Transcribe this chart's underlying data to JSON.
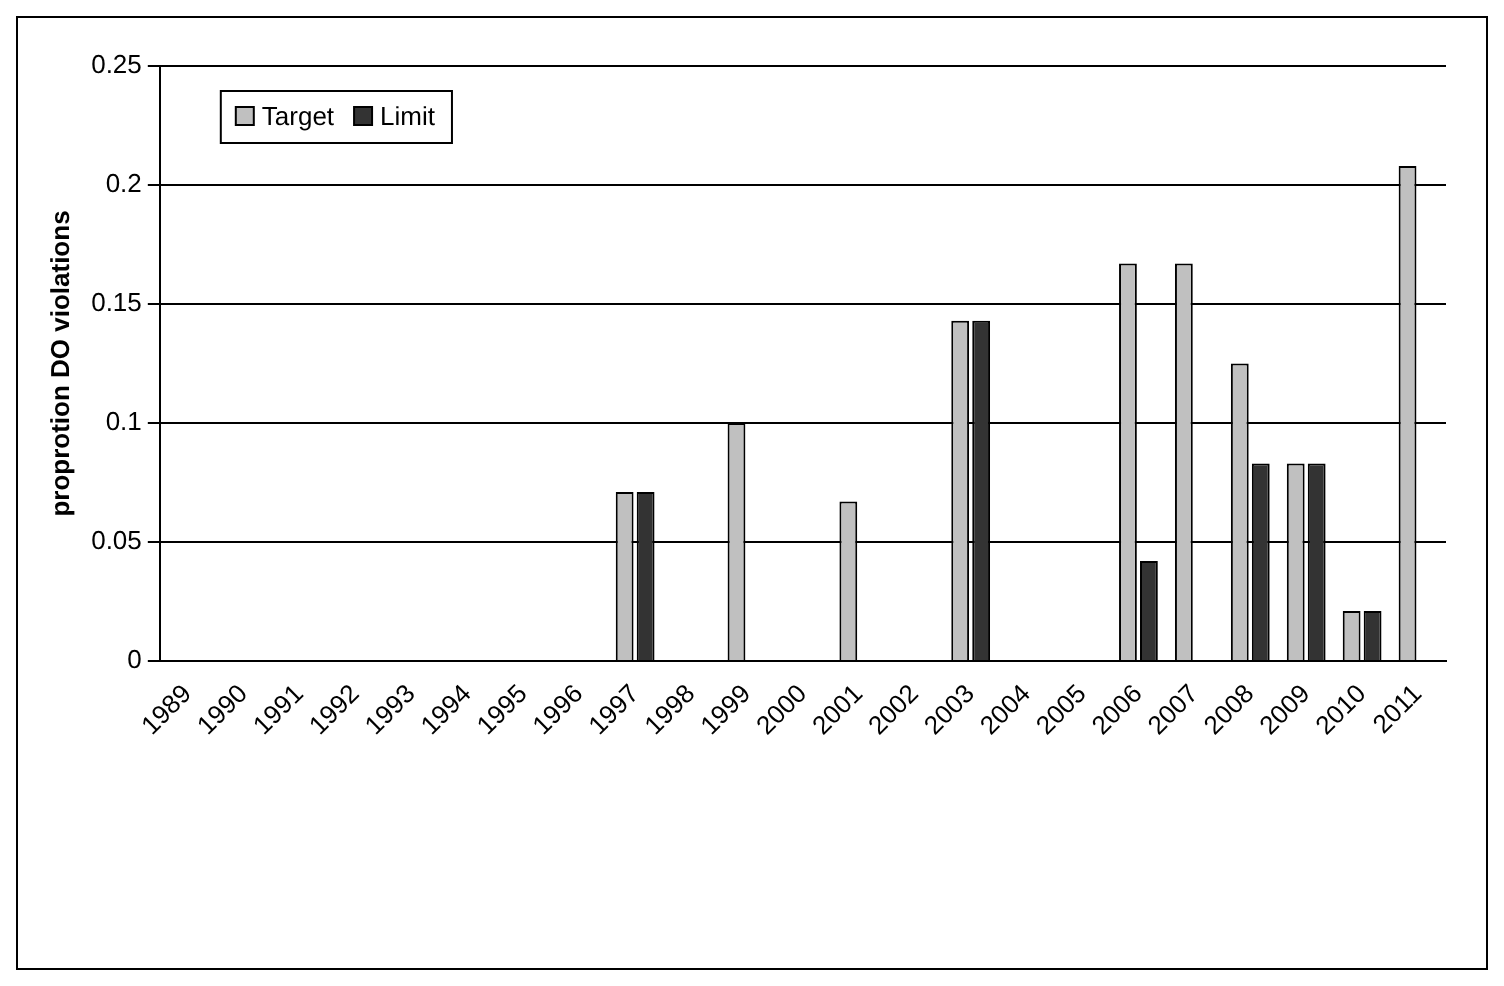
{
  "chart_data": {
    "type": "bar",
    "ylabel": "proprotion DO violations",
    "categories": [
      "1989",
      "1990",
      "1991",
      "1992",
      "1993",
      "1994",
      "1995",
      "1996",
      "1997",
      "1998",
      "1999",
      "2000",
      "2001",
      "2002",
      "2003",
      "2004",
      "2005",
      "2006",
      "2007",
      "2008",
      "2009",
      "2010",
      "2011"
    ],
    "series": [
      {
        "name": "Target",
        "color": "#c0c0c0",
        "values": [
          0,
          0,
          0,
          0,
          0,
          0,
          0,
          0,
          0.071,
          0,
          0.1,
          0,
          0.067,
          0,
          0.143,
          0,
          0,
          0.167,
          0.167,
          0.125,
          0.083,
          0.021,
          0.208
        ]
      },
      {
        "name": "Limit",
        "color": "#333333",
        "values": [
          0,
          0,
          0,
          0,
          0,
          0,
          0,
          0,
          0.071,
          0,
          0,
          0,
          0,
          0,
          0.143,
          0,
          0,
          0.042,
          0,
          0.083,
          0.083,
          0.021,
          0
        ]
      }
    ],
    "ylim": [
      0,
      0.25
    ],
    "yticks": [
      0,
      0.05,
      0.1,
      0.15,
      0.2,
      0.25
    ],
    "grid": "y",
    "legend": "top left"
  }
}
